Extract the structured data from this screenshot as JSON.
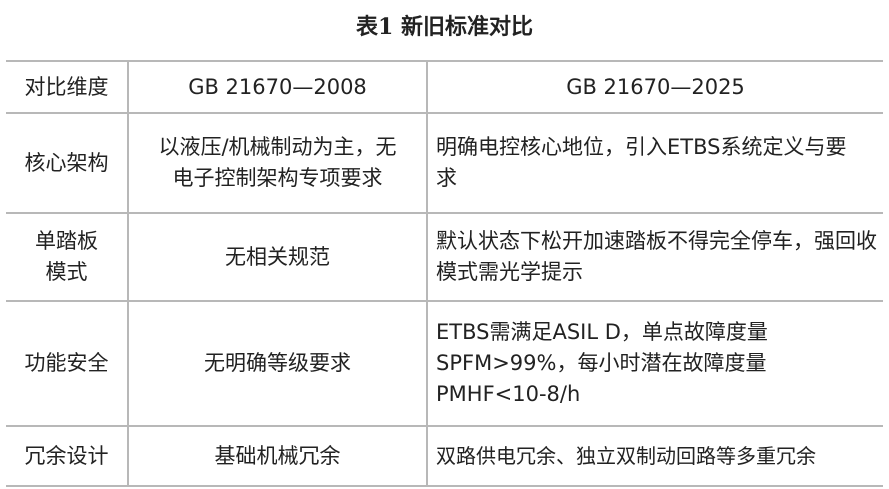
{
  "title": "表1 新旧标准对比",
  "table": {
    "headers": [
      "对比维度",
      "GB 21670—2008",
      "GB 21670—2025"
    ],
    "rows": [
      [
        "核心架构",
        "以液压/机械制动为主，无电子控制架构专项要求",
        "明确电控核心地位，引入ETBS系统定义与要求"
      ],
      [
        "单踏板模式",
        "无相关规范",
        "默认状态下松开加速踏板不得完全停车，强回收模式需光学提示"
      ],
      [
        "功能安全",
        "无明确等级要求",
        "ETBS需满足ASIL D，单点故障度量SPFM>99%，每小时潜在故障度量PMHF<10-8/h"
      ],
      [
        "冗余设计",
        "基础机械冗余",
        "双路供电冗余、独立双制动回路等多重冗余"
      ]
    ]
  }
}
